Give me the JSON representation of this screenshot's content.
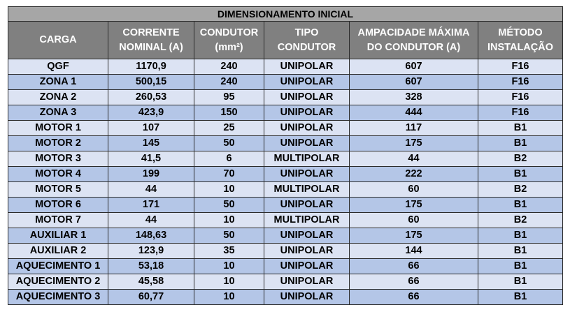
{
  "table": {
    "title": "DIMENSIONAMENTO INICIAL",
    "headers": [
      {
        "line1": "CARGA",
        "line2": ""
      },
      {
        "line1": "CORRENTE",
        "line2": "NOMINAL (A)"
      },
      {
        "line1": "CONDUTOR",
        "line2": "(mm²)"
      },
      {
        "line1": "TIPO",
        "line2": "CONDUTOR"
      },
      {
        "line1": "AMPACIDADE MÁXIMA",
        "line2": "DO CONDUTOR (A)"
      },
      {
        "line1": "MÉTODO",
        "line2": "INSTALAÇÃO"
      }
    ],
    "rows": [
      [
        "QGF",
        "1170,9",
        "240",
        "UNIPOLAR",
        "607",
        "F16"
      ],
      [
        "ZONA 1",
        "500,15",
        "240",
        "UNIPOLAR",
        "607",
        "F16"
      ],
      [
        "ZONA 2",
        "260,53",
        "95",
        "UNIPOLAR",
        "328",
        "F16"
      ],
      [
        "ZONA 3",
        "423,9",
        "150",
        "UNIPOLAR",
        "444",
        "F16"
      ],
      [
        "MOTOR 1",
        "107",
        "25",
        "UNIPOLAR",
        "117",
        "B1"
      ],
      [
        "MOTOR 2",
        "145",
        "50",
        "UNIPOLAR",
        "175",
        "B1"
      ],
      [
        "MOTOR 3",
        "41,5",
        "6",
        "MULTIPOLAR",
        "44",
        "B2"
      ],
      [
        "MOTOR 4",
        "199",
        "70",
        "UNIPOLAR",
        "222",
        "B1"
      ],
      [
        "MOTOR 5",
        "44",
        "10",
        "MULTIPOLAR",
        "60",
        "B2"
      ],
      [
        "MOTOR 6",
        "171",
        "50",
        "UNIPOLAR",
        "175",
        "B1"
      ],
      [
        "MOTOR 7",
        "44",
        "10",
        "MULTIPOLAR",
        "60",
        "B2"
      ],
      [
        "AUXILIAR 1",
        "148,63",
        "50",
        "UNIPOLAR",
        "175",
        "B1"
      ],
      [
        "AUXILIAR 2",
        "123,9",
        "35",
        "UNIPOLAR",
        "144",
        "B1"
      ],
      [
        "AQUECIMENTO 1",
        "53,18",
        "10",
        "UNIPOLAR",
        "66",
        "B1"
      ],
      [
        "AQUECIMENTO 2",
        "45,58",
        "10",
        "UNIPOLAR",
        "66",
        "B1"
      ],
      [
        "AQUECIMENTO 3",
        "60,77",
        "10",
        "UNIPOLAR",
        "66",
        "B1"
      ]
    ]
  },
  "colors": {
    "title_bg": "#a6a6a6",
    "header_bg": "#808080",
    "header_text": "#ffffff",
    "row_light": "#dce3f3",
    "row_dark": "#b4c6e7",
    "border": "#2b2b2b"
  }
}
